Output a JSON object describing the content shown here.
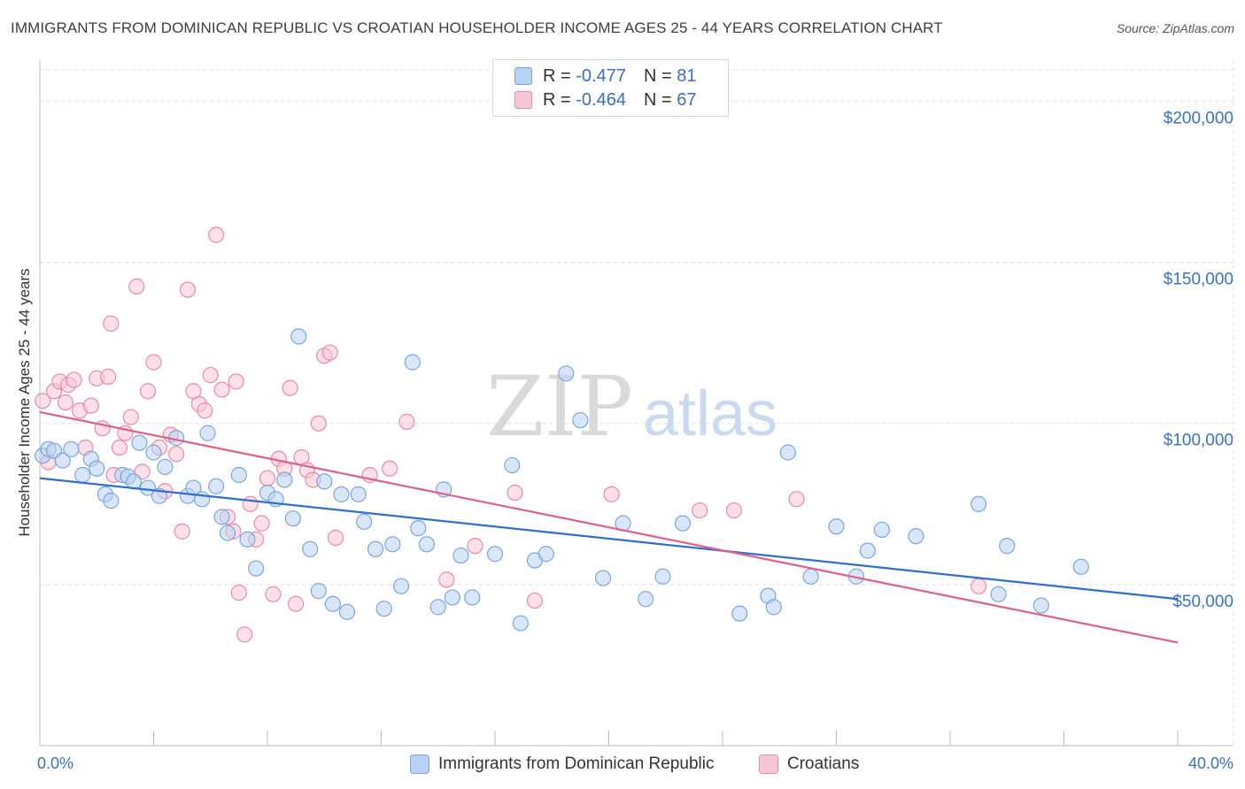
{
  "title": "IMMIGRANTS FROM DOMINICAN REPUBLIC VS CROATIAN HOUSEHOLDER INCOME AGES 25 - 44 YEARS CORRELATION CHART",
  "source": "Source: ZipAtlas.com",
  "watermark": {
    "zip": "ZIP",
    "atlas": "atlas"
  },
  "legend": {
    "series1": {
      "r_label": "R =",
      "r_value": "-0.477",
      "n_label": "N =",
      "n_value": "81"
    },
    "series2": {
      "r_label": "R =",
      "r_value": "-0.464",
      "n_label": "N =",
      "n_value": "67"
    }
  },
  "colors": {
    "blue_fill": "#b9d1f2",
    "blue_stroke": "#7aa6e0",
    "blue_line": "#2e6fcf",
    "pink_fill": "#f7c6d6",
    "pink_stroke": "#e88aa8",
    "pink_line": "#e0608c",
    "tick_label": "#3a72c9",
    "grid": "#dcdcdc"
  },
  "chart_data": {
    "type": "scatter",
    "title": "IMMIGRANTS FROM DOMINICAN REPUBLIC VS CROATIAN HOUSEHOLDER INCOME AGES 25 - 44 YEARS CORRELATION CHART",
    "xlabel": "",
    "ylabel": "Householder Income Ages 25 - 44 years",
    "xlim": [
      0,
      40
    ],
    "ylim": [
      0,
      210000
    ],
    "x_tick_labels": [
      "0.0%",
      "40.0%"
    ],
    "y_ticks": [
      50000,
      100000,
      150000,
      200000
    ],
    "y_tick_labels": [
      "$50,000",
      "$100,000",
      "$150,000",
      "$200,000"
    ],
    "grid": true,
    "legend_position": "top-center",
    "series": [
      {
        "name": "Immigrants from Dominican Republic",
        "color": "#7aa6e0",
        "r": -0.477,
        "n": 81,
        "trend": {
          "x": [
            0,
            40
          ],
          "y": [
            83000,
            45500
          ]
        },
        "points": [
          [
            0.1,
            90000
          ],
          [
            0.3,
            92000
          ],
          [
            0.5,
            91500
          ],
          [
            0.8,
            88500
          ],
          [
            1.1,
            92000
          ],
          [
            1.5,
            84000
          ],
          [
            1.8,
            89000
          ],
          [
            2.0,
            86000
          ],
          [
            2.3,
            78000
          ],
          [
            2.5,
            76000
          ],
          [
            2.9,
            84000
          ],
          [
            3.1,
            83500
          ],
          [
            3.3,
            82000
          ],
          [
            3.5,
            94000
          ],
          [
            3.8,
            80000
          ],
          [
            4.0,
            91000
          ],
          [
            4.2,
            77500
          ],
          [
            4.4,
            86500
          ],
          [
            4.8,
            95500
          ],
          [
            5.2,
            77500
          ],
          [
            5.4,
            80000
          ],
          [
            5.7,
            76500
          ],
          [
            5.9,
            97000
          ],
          [
            6.2,
            80500
          ],
          [
            6.4,
            71000
          ],
          [
            6.6,
            66000
          ],
          [
            7.0,
            84000
          ],
          [
            7.3,
            64000
          ],
          [
            7.6,
            55000
          ],
          [
            8.0,
            78500
          ],
          [
            8.3,
            76500
          ],
          [
            8.6,
            82500
          ],
          [
            8.9,
            70500
          ],
          [
            9.1,
            127000
          ],
          [
            9.5,
            61000
          ],
          [
            9.8,
            48000
          ],
          [
            10.0,
            82000
          ],
          [
            10.3,
            44000
          ],
          [
            10.6,
            78000
          ],
          [
            10.8,
            41500
          ],
          [
            11.2,
            78000
          ],
          [
            11.4,
            69500
          ],
          [
            11.8,
            61000
          ],
          [
            12.1,
            42500
          ],
          [
            12.4,
            62500
          ],
          [
            12.7,
            49500
          ],
          [
            13.1,
            119000
          ],
          [
            13.3,
            67500
          ],
          [
            13.6,
            62500
          ],
          [
            14.0,
            43000
          ],
          [
            14.2,
            79500
          ],
          [
            14.5,
            46000
          ],
          [
            14.8,
            59000
          ],
          [
            15.2,
            46000
          ],
          [
            16.0,
            59500
          ],
          [
            16.6,
            87000
          ],
          [
            16.9,
            38000
          ],
          [
            17.4,
            57500
          ],
          [
            17.8,
            59500
          ],
          [
            18.5,
            115500
          ],
          [
            19.0,
            101000
          ],
          [
            19.8,
            52000
          ],
          [
            20.5,
            69000
          ],
          [
            21.3,
            45500
          ],
          [
            21.9,
            52500
          ],
          [
            22.6,
            69000
          ],
          [
            24.6,
            41000
          ],
          [
            25.6,
            46500
          ],
          [
            25.8,
            43000
          ],
          [
            26.3,
            91000
          ],
          [
            27.1,
            52500
          ],
          [
            28.0,
            68000
          ],
          [
            28.7,
            52500
          ],
          [
            29.1,
            60500
          ],
          [
            29.6,
            67000
          ],
          [
            30.8,
            65000
          ],
          [
            33.0,
            75000
          ],
          [
            33.7,
            47000
          ],
          [
            34.0,
            62000
          ],
          [
            35.2,
            43500
          ],
          [
            36.6,
            55500
          ]
        ]
      },
      {
        "name": "Croatians",
        "color": "#e88aa8",
        "r": -0.464,
        "n": 67,
        "trend": {
          "x": [
            0,
            40
          ],
          "y": [
            103500,
            32000
          ]
        },
        "points": [
          [
            0.1,
            107000
          ],
          [
            0.3,
            88000
          ],
          [
            0.5,
            110000
          ],
          [
            0.7,
            113000
          ],
          [
            0.9,
            106500
          ],
          [
            1.0,
            112000
          ],
          [
            1.2,
            113500
          ],
          [
            1.4,
            104000
          ],
          [
            1.6,
            92500
          ],
          [
            1.8,
            105500
          ],
          [
            2.0,
            114000
          ],
          [
            2.2,
            98500
          ],
          [
            2.4,
            114500
          ],
          [
            2.6,
            84000
          ],
          [
            2.8,
            92500
          ],
          [
            3.0,
            97000
          ],
          [
            3.2,
            102000
          ],
          [
            3.4,
            142500
          ],
          [
            3.6,
            85000
          ],
          [
            3.8,
            110000
          ],
          [
            4.0,
            119000
          ],
          [
            4.2,
            92500
          ],
          [
            4.4,
            79000
          ],
          [
            4.6,
            96500
          ],
          [
            4.8,
            90500
          ],
          [
            5.0,
            66500
          ],
          [
            5.2,
            141500
          ],
          [
            5.4,
            110000
          ],
          [
            5.6,
            106000
          ],
          [
            5.8,
            104000
          ],
          [
            6.0,
            115000
          ],
          [
            6.2,
            158500
          ],
          [
            6.4,
            110500
          ],
          [
            6.6,
            71000
          ],
          [
            6.8,
            66500
          ],
          [
            7.0,
            47500
          ],
          [
            7.2,
            34500
          ],
          [
            7.4,
            75000
          ],
          [
            7.6,
            64000
          ],
          [
            7.8,
            69000
          ],
          [
            8.0,
            83000
          ],
          [
            8.2,
            47000
          ],
          [
            8.4,
            89000
          ],
          [
            8.6,
            86000
          ],
          [
            8.8,
            111000
          ],
          [
            9.0,
            44000
          ],
          [
            9.2,
            89500
          ],
          [
            9.4,
            85500
          ],
          [
            9.6,
            82500
          ],
          [
            9.8,
            100000
          ],
          [
            10.0,
            121000
          ],
          [
            10.2,
            122000
          ],
          [
            10.4,
            64500
          ],
          [
            11.6,
            84000
          ],
          [
            12.3,
            86000
          ],
          [
            12.9,
            100500
          ],
          [
            14.3,
            51500
          ],
          [
            15.3,
            62000
          ],
          [
            16.7,
            78500
          ],
          [
            17.4,
            45000
          ],
          [
            20.1,
            78000
          ],
          [
            23.2,
            73000
          ],
          [
            24.4,
            73000
          ],
          [
            26.6,
            76500
          ],
          [
            33.0,
            49500
          ],
          [
            2.5,
            131000
          ],
          [
            6.9,
            113000
          ]
        ]
      }
    ]
  }
}
